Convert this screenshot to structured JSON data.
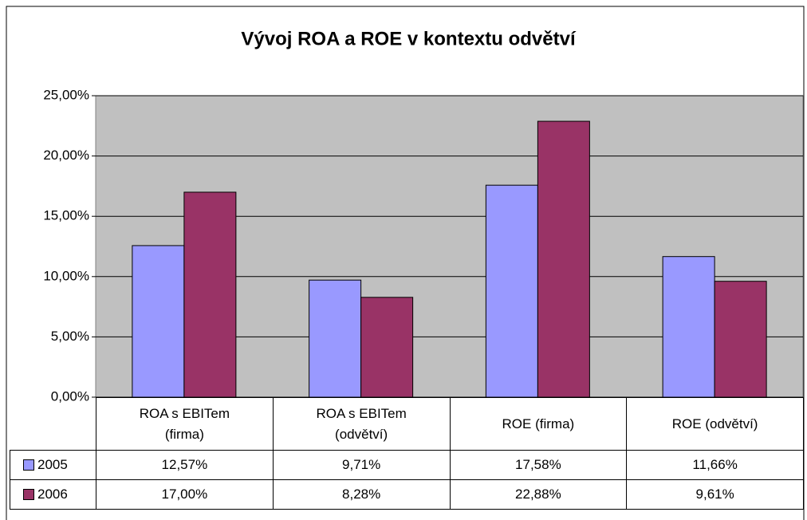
{
  "chart_data": {
    "type": "bar",
    "title": "Vývoj ROA a ROE v kontextu odvětví",
    "categories": [
      "ROA s EBITem (firma)",
      "ROA s EBITem (odvětví)",
      "ROE (firma)",
      "ROE (odvětví)"
    ],
    "series": [
      {
        "name": "2005",
        "color": "#9999ff",
        "values": [
          12.57,
          9.71,
          17.58,
          11.66
        ],
        "value_labels": [
          "12,57%",
          "9,71%",
          "17,58%",
          "11,66%"
        ]
      },
      {
        "name": "2006",
        "color": "#993366",
        "values": [
          17.0,
          8.28,
          22.88,
          9.61
        ],
        "value_labels": [
          "17,00%",
          "8,28%",
          "22,88%",
          "9,61%"
        ]
      }
    ],
    "ylim": [
      0,
      25
    ],
    "yticks": [
      {
        "value": 0,
        "label": "0,00%"
      },
      {
        "value": 5,
        "label": "5,00%"
      },
      {
        "value": 10,
        "label": "10,00%"
      },
      {
        "value": 15,
        "label": "15,00%"
      },
      {
        "value": 20,
        "label": "20,00%"
      },
      {
        "value": 25,
        "label": "25,00%"
      }
    ],
    "grid": true
  }
}
